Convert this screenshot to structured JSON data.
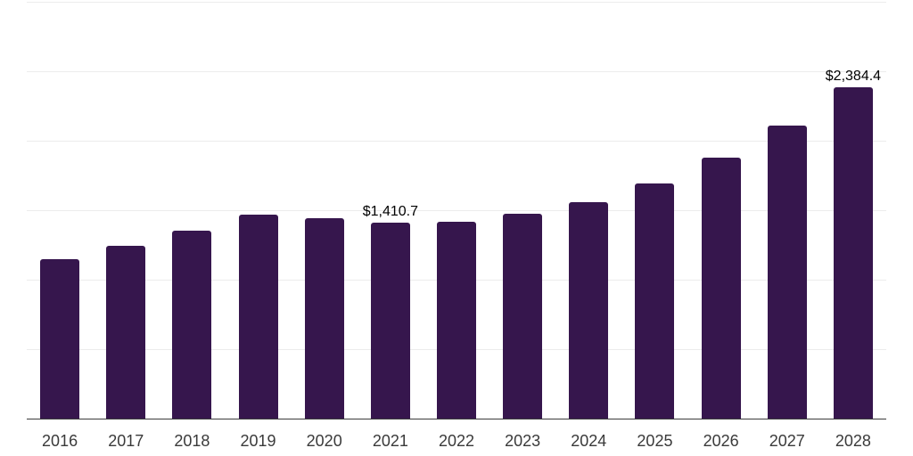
{
  "chart_data": {
    "type": "bar",
    "title": "",
    "xlabel": "",
    "ylabel": "",
    "categories": [
      "2016",
      "2017",
      "2018",
      "2019",
      "2020",
      "2021",
      "2022",
      "2023",
      "2024",
      "2025",
      "2026",
      "2027",
      "2028"
    ],
    "values": [
      1150,
      1245,
      1350,
      1470,
      1440,
      1410.7,
      1415,
      1472,
      1556,
      1694,
      1880,
      2112,
      2384.4
    ],
    "value_labels": [
      {
        "index": 5,
        "category": "2021",
        "text": "$1,410.7"
      },
      {
        "index": 12,
        "category": "2028",
        "text": "$2,384.4"
      }
    ],
    "ylim": [
      0,
      3000
    ],
    "gridline_values": [
      500,
      1000,
      1500,
      2000,
      2500,
      3000
    ],
    "grid": "horizontal-only",
    "y_tick_labels_visible": false,
    "legend": "none",
    "colors": {
      "bar": "#36164d",
      "gridline": "#ececec",
      "axis_line": "#3c3c3c",
      "tick_label": "#3a3a3a",
      "value_label": "#000000",
      "background": "#ffffff"
    }
  }
}
